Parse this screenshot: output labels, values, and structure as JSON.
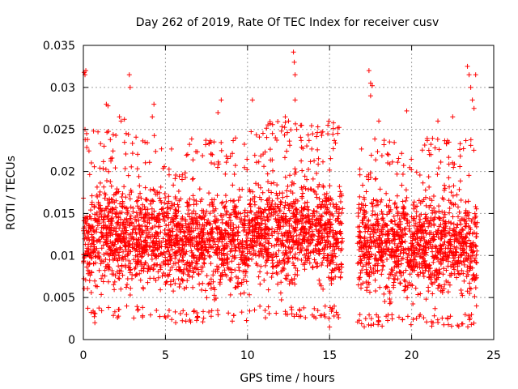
{
  "chart_data": {
    "type": "scatter",
    "title": "Day 262 of 2019, Rate Of TEC Index for receiver cusv",
    "xlabel": "GPS time / hours",
    "ylabel": "ROTI / TECUs",
    "xlim": [
      0,
      25
    ],
    "ylim": [
      0,
      0.035
    ],
    "x_ticks": [
      0,
      5,
      10,
      15,
      20,
      25
    ],
    "x_tick_labels": [
      "0",
      "5",
      "10",
      "15",
      "20",
      "25"
    ],
    "y_ticks": [
      0,
      0.005,
      0.01,
      0.015,
      0.02,
      0.025,
      0.03,
      0.035
    ],
    "y_tick_labels": [
      "0",
      "0.005",
      "0.01",
      "0.015",
      "0.02",
      "0.025",
      "0.03",
      "0.035"
    ],
    "grid": true,
    "marker": "+",
    "series_color": "#ff0000",
    "data_gap_hours": [
      15.8,
      16.7
    ],
    "bulk_bands": [
      {
        "x_start": 0.0,
        "x_end": 0.5,
        "y_low": 0.004,
        "y_high": 0.019
      },
      {
        "x_start": 0.5,
        "x_end": 5.0,
        "y_low": 0.004,
        "y_high": 0.02
      },
      {
        "x_start": 5.0,
        "x_end": 10.0,
        "y_low": 0.0035,
        "y_high": 0.019
      },
      {
        "x_start": 10.0,
        "x_end": 15.8,
        "y_low": 0.004,
        "y_high": 0.021
      },
      {
        "x_start": 16.7,
        "x_end": 20.0,
        "y_low": 0.003,
        "y_high": 0.019
      },
      {
        "x_start": 20.0,
        "x_end": 24.0,
        "y_low": 0.003,
        "y_high": 0.019
      }
    ],
    "notable_points": [
      {
        "x": 0.05,
        "y": 0.0318
      },
      {
        "x": 0.1,
        "y": 0.0315
      },
      {
        "x": 0.15,
        "y": 0.032
      },
      {
        "x": 0.1,
        "y": 0.025
      },
      {
        "x": 0.2,
        "y": 0.0245
      },
      {
        "x": 0.25,
        "y": 0.0238
      },
      {
        "x": 1.4,
        "y": 0.028
      },
      {
        "x": 1.5,
        "y": 0.0278
      },
      {
        "x": 2.2,
        "y": 0.0265
      },
      {
        "x": 2.3,
        "y": 0.026
      },
      {
        "x": 2.5,
        "y": 0.0262
      },
      {
        "x": 2.8,
        "y": 0.0315
      },
      {
        "x": 2.85,
        "y": 0.03
      },
      {
        "x": 4.3,
        "y": 0.028
      },
      {
        "x": 4.2,
        "y": 0.0265
      },
      {
        "x": 8.4,
        "y": 0.0285
      },
      {
        "x": 8.2,
        "y": 0.027
      },
      {
        "x": 10.3,
        "y": 0.0285
      },
      {
        "x": 12.3,
        "y": 0.0265
      },
      {
        "x": 12.5,
        "y": 0.026
      },
      {
        "x": 12.8,
        "y": 0.0342
      },
      {
        "x": 12.85,
        "y": 0.033
      },
      {
        "x": 12.9,
        "y": 0.0315
      },
      {
        "x": 12.9,
        "y": 0.0285
      },
      {
        "x": 14.9,
        "y": 0.0255
      },
      {
        "x": 13.0,
        "y": 0.025
      },
      {
        "x": 0.7,
        "y": 0.002
      },
      {
        "x": 15.0,
        "y": 0.0015
      },
      {
        "x": 17.4,
        "y": 0.032
      },
      {
        "x": 17.5,
        "y": 0.0305
      },
      {
        "x": 17.6,
        "y": 0.0302
      },
      {
        "x": 17.5,
        "y": 0.029
      },
      {
        "x": 18.0,
        "y": 0.026
      },
      {
        "x": 19.7,
        "y": 0.0272
      },
      {
        "x": 21.6,
        "y": 0.026
      },
      {
        "x": 22.5,
        "y": 0.0265
      },
      {
        "x": 23.4,
        "y": 0.0325
      },
      {
        "x": 23.5,
        "y": 0.0315
      },
      {
        "x": 23.6,
        "y": 0.03
      },
      {
        "x": 23.7,
        "y": 0.0285
      },
      {
        "x": 23.9,
        "y": 0.0315
      },
      {
        "x": 23.8,
        "y": 0.0275
      },
      {
        "x": 21.3,
        "y": 0.002
      },
      {
        "x": 17.2,
        "y": 0.0025
      },
      {
        "x": 23.95,
        "y": 0.004
      }
    ]
  }
}
